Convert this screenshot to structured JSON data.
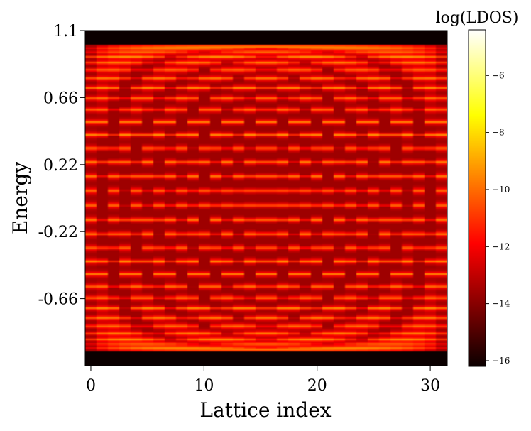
{
  "chart_data": {
    "type": "heatmap",
    "title": "",
    "xlabel": "Lattice index",
    "ylabel": "Energy",
    "colorbar_label": "log(LDOS)",
    "colormap": "hot",
    "xlim": [
      -0.5,
      31.5
    ],
    "ylim": [
      -1.1,
      1.1
    ],
    "x_ticks": [
      0,
      10,
      20,
      30
    ],
    "x_tick_labels": [
      "0",
      "10",
      "20",
      "30"
    ],
    "y_ticks": [
      1.1,
      0.66,
      0.22,
      -0.22,
      -0.66
    ],
    "y_tick_labels": [
      "1.1",
      "0.66",
      "0.22",
      "-0.22",
      "-0.66"
    ],
    "color_range": [
      -16.2,
      -4.4
    ],
    "colorbar_ticks": [
      -6,
      -8,
      -10,
      -12,
      -14,
      -16
    ],
    "colorbar_tick_labels": [
      "−6",
      "−8",
      "−10",
      "−12",
      "−14",
      "−16"
    ],
    "lattice_sites": 32,
    "band_edge": 0.995,
    "background_level": -13.6,
    "peak_level": -9.0,
    "grid": false,
    "legend": "none"
  }
}
